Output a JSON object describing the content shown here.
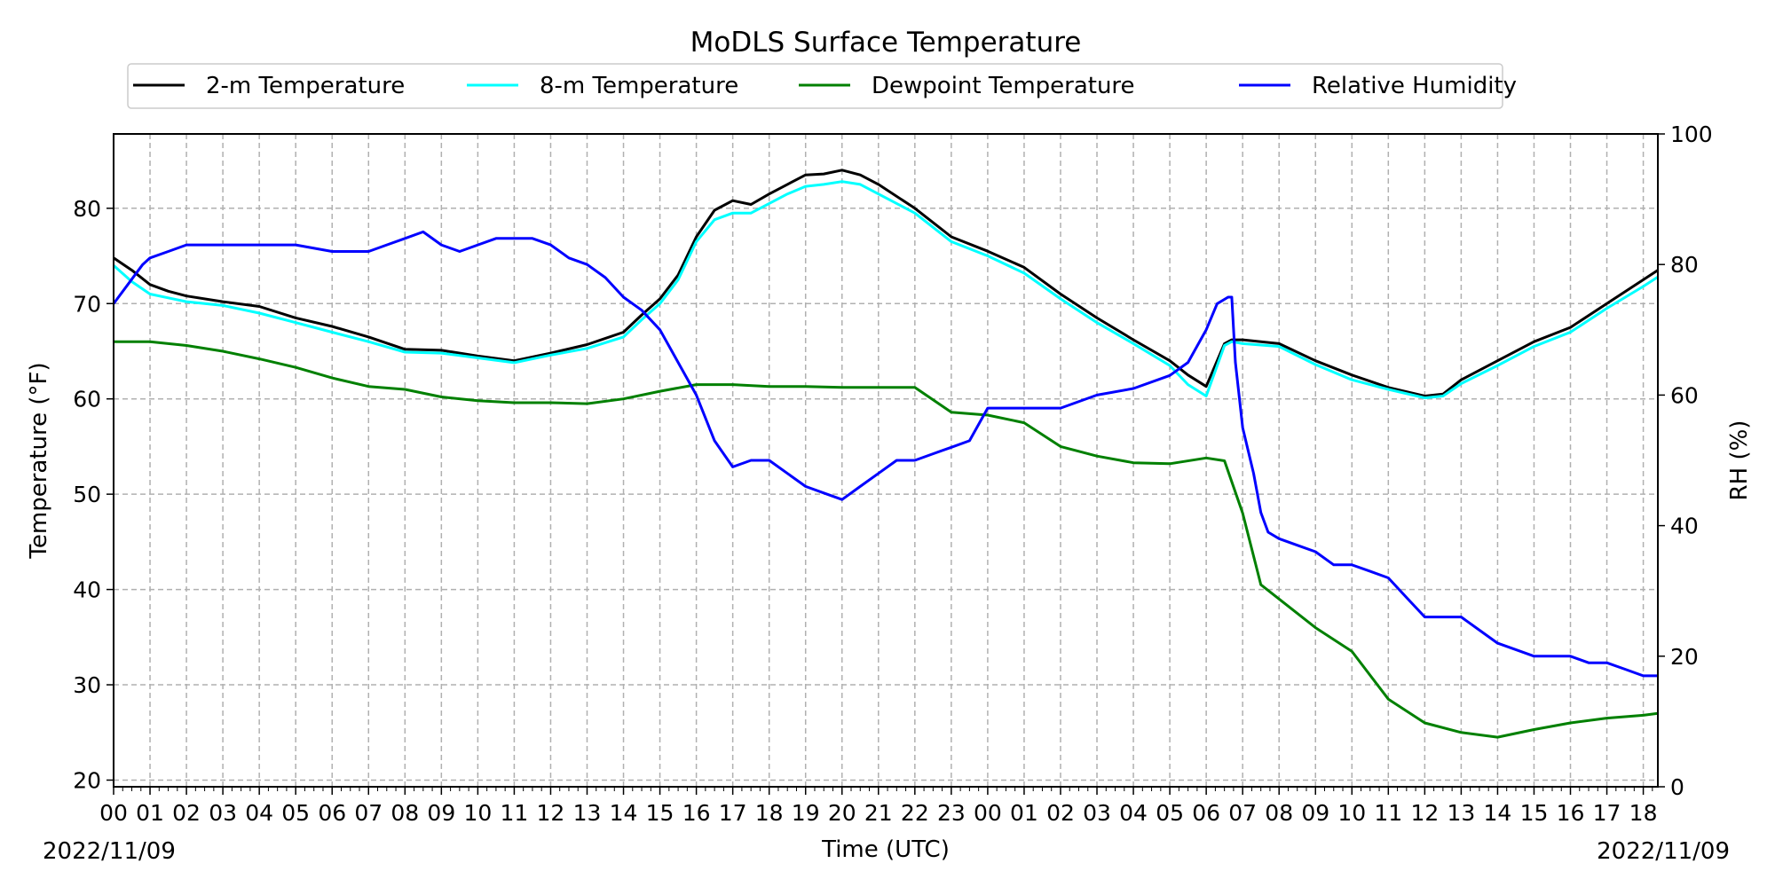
{
  "chart_data": {
    "type": "line",
    "title": "MoDLS Surface Temperature",
    "xlabel": "Time (UTC)",
    "ylabel": "Temperature ($^\\circ$F)",
    "ylabel_text": "Temperature (°F)",
    "y2label": "RH (%)",
    "date_left": "2022/11/09",
    "date_right": "2022/11/09",
    "x_units": "hours since 2022/11/09 00 UTC",
    "xlim": [
      0,
      42.4
    ],
    "ylim": [
      19.3,
      87.8
    ],
    "y2lim": [
      0,
      100
    ],
    "yticks": [
      20,
      30,
      40,
      50,
      60,
      70,
      80
    ],
    "y2ticks": [
      0,
      20,
      40,
      60,
      80,
      100
    ],
    "xtick_labels": [
      "00",
      "01",
      "02",
      "03",
      "04",
      "05",
      "06",
      "07",
      "08",
      "09",
      "10",
      "11",
      "12",
      "13",
      "14",
      "15",
      "16",
      "17",
      "18",
      "19",
      "20",
      "21",
      "22",
      "23",
      "00",
      "01",
      "02",
      "03",
      "04",
      "05",
      "06",
      "07",
      "08",
      "09",
      "10",
      "11",
      "12",
      "13",
      "14",
      "15",
      "16",
      "17",
      "18"
    ],
    "grid": true,
    "legend_position": "top-center",
    "series": [
      {
        "name": "2-m Temperature",
        "color": "#000000",
        "axis": "left",
        "x": [
          0,
          0.5,
          1,
          1.5,
          2,
          3,
          4,
          5,
          6,
          7,
          8,
          9,
          10,
          11,
          12,
          13,
          14,
          14.5,
          15,
          15.5,
          16,
          16.5,
          17,
          17.5,
          18,
          18.5,
          19,
          19.5,
          20,
          20.5,
          21,
          22,
          23,
          24,
          25,
          26,
          27,
          28,
          29,
          29.5,
          30,
          30.5,
          30.7,
          31,
          32,
          33,
          34,
          35,
          36,
          36.5,
          37,
          38,
          39,
          40,
          41,
          42,
          42.4
        ],
        "y": [
          74.8,
          73.5,
          72,
          71.3,
          70.8,
          70.2,
          69.7,
          68.5,
          67.6,
          66.5,
          65.2,
          65.1,
          64.5,
          64,
          64.8,
          65.7,
          67,
          68.8,
          70.5,
          73,
          77,
          79.8,
          80.8,
          80.4,
          81.5,
          82.5,
          83.5,
          83.6,
          84,
          83.5,
          82.5,
          80,
          77,
          75.5,
          73.8,
          71,
          68.5,
          66.2,
          64,
          62.5,
          61.3,
          65.8,
          66.2,
          66.2,
          65.8,
          64,
          62.5,
          61.2,
          60.3,
          60.5,
          62,
          64,
          66,
          67.5,
          70,
          72.5,
          73.5
        ]
      },
      {
        "name": "8-m Temperature",
        "color": "#00ffff",
        "axis": "left",
        "x": [
          0,
          0.5,
          1,
          1.5,
          2,
          3,
          4,
          5,
          6,
          7,
          8,
          9,
          10,
          11,
          12,
          13,
          14,
          14.5,
          15,
          15.5,
          16,
          16.5,
          17,
          17.5,
          18,
          18.5,
          19,
          19.5,
          20,
          20.5,
          21,
          22,
          23,
          24,
          25,
          26,
          27,
          28,
          29,
          29.5,
          30,
          30.5,
          30.7,
          31,
          32,
          33,
          34,
          35,
          36,
          36.5,
          37,
          38,
          39,
          40,
          41,
          42,
          42.4
        ],
        "y": [
          74,
          72.3,
          71,
          70.6,
          70.2,
          69.8,
          69,
          68,
          67,
          66,
          64.9,
          64.8,
          64.3,
          63.8,
          64.6,
          65.3,
          66.5,
          68.3,
          70,
          72.5,
          76.5,
          78.8,
          79.5,
          79.5,
          80.5,
          81.5,
          82.3,
          82.5,
          82.8,
          82.5,
          81.5,
          79.5,
          76.5,
          75,
          73.2,
          70.5,
          68,
          65.8,
          63.5,
          61.5,
          60.3,
          65.6,
          66,
          65.8,
          65.5,
          63.6,
          62,
          61,
          60.1,
          60.3,
          61.6,
          63.5,
          65.5,
          67,
          69.5,
          71.8,
          72.8
        ]
      },
      {
        "name": "Dewpoint Temperature",
        "color": "#008000",
        "axis": "left",
        "x": [
          0,
          1,
          2,
          3,
          4,
          5,
          6,
          7,
          8,
          9,
          10,
          11,
          12,
          13,
          14,
          15,
          16,
          17,
          18,
          19,
          20,
          21,
          22,
          23,
          24,
          25,
          26,
          27,
          28,
          29,
          30,
          30.5,
          31,
          31.5,
          32,
          33,
          34,
          35,
          36,
          37,
          38,
          39,
          40,
          41,
          42,
          42.4
        ],
        "y": [
          66,
          66,
          65.6,
          65,
          64.2,
          63.3,
          62.2,
          61.3,
          61,
          60.2,
          59.8,
          59.6,
          59.6,
          59.5,
          60,
          60.8,
          61.5,
          61.5,
          61.3,
          61.3,
          61.2,
          61.2,
          61.2,
          58.6,
          58.3,
          57.5,
          55,
          54,
          53.3,
          53.2,
          53.8,
          53.5,
          48,
          40.5,
          39,
          36,
          33.5,
          28.5,
          26,
          25,
          24.5,
          25.3,
          26,
          26.5,
          26.8,
          27
        ]
      },
      {
        "name": "Relative Humidity",
        "color": "#0000ff",
        "axis": "right",
        "x": [
          0,
          0.4,
          0.8,
          1,
          1.5,
          2,
          3,
          4,
          5,
          6,
          7,
          7.5,
          8,
          8.5,
          9,
          9.5,
          10,
          10.5,
          11,
          11.5,
          12,
          12.5,
          13,
          13.5,
          14,
          14.5,
          15,
          15.5,
          16,
          16.5,
          17,
          17.5,
          18,
          18.5,
          19,
          19.5,
          20,
          20.5,
          21,
          21.5,
          22,
          22.5,
          23,
          23.5,
          24,
          25,
          26,
          27,
          28,
          29,
          29.5,
          30,
          30.3,
          30.6,
          30.7,
          30.8,
          31,
          31.3,
          31.5,
          31.7,
          32,
          32.5,
          33,
          33.5,
          34,
          34.5,
          35,
          35.5,
          36,
          36.5,
          37,
          37.5,
          38,
          38.5,
          39,
          39.5,
          40,
          40.5,
          41,
          41.5,
          42,
          42.4
        ],
        "y": [
          74,
          77,
          80,
          81,
          82,
          83,
          83,
          83,
          83,
          82,
          82,
          83,
          84,
          85,
          83,
          82,
          83,
          84,
          84,
          84,
          83,
          81,
          80,
          78,
          75,
          73,
          70,
          65,
          60,
          53,
          49,
          50,
          50,
          48,
          46,
          45,
          44,
          46,
          48,
          50,
          50,
          51,
          52,
          53,
          58,
          58,
          58,
          60,
          61,
          63,
          65,
          70,
          74,
          75,
          75,
          65,
          55,
          48,
          42,
          39,
          38,
          37,
          36,
          34,
          34,
          33,
          32,
          29,
          26,
          26,
          26,
          24,
          22,
          21,
          20,
          20,
          20,
          19,
          19,
          18,
          17,
          17
        ]
      }
    ]
  }
}
